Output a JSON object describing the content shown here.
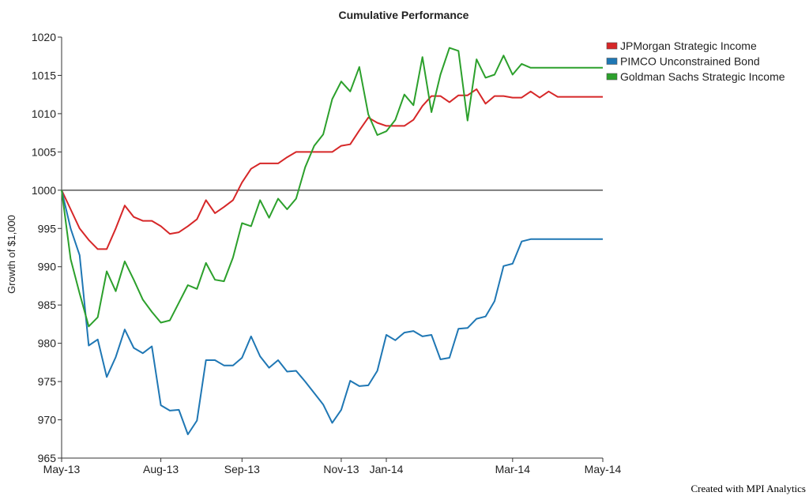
{
  "chart_data": {
    "type": "line",
    "title": "Cumulative Performance",
    "ylabel": "Growth of $1,000",
    "xlabel": "",
    "ylim": [
      965,
      1020
    ],
    "yticks": [
      965,
      970,
      975,
      980,
      985,
      990,
      995,
      1000,
      1005,
      1010,
      1015,
      1020
    ],
    "xlim": [
      0,
      60
    ],
    "xticks": [
      {
        "x": 0,
        "label": "May-13"
      },
      {
        "x": 11,
        "label": "Aug-13"
      },
      {
        "x": 20,
        "label": "Sep-13"
      },
      {
        "x": 31,
        "label": "Nov-13"
      },
      {
        "x": 36,
        "label": "Jan-14"
      },
      {
        "x": 50,
        "label": "Mar-14"
      },
      {
        "x": 60,
        "label": "May-14"
      }
    ],
    "reference_line": 1000,
    "legend_position": "top-right",
    "grid": false,
    "series": [
      {
        "name": "JPMorgan Strategic Income",
        "color": "#d62728",
        "x": [
          0,
          1,
          2,
          3,
          4,
          5,
          6,
          7,
          8,
          9,
          10,
          11,
          12,
          13,
          14,
          15,
          16,
          17,
          18,
          19,
          20,
          21,
          22,
          23,
          24,
          25,
          26,
          27,
          28,
          29,
          30,
          31,
          32,
          33,
          34,
          35,
          36,
          37,
          38,
          39,
          40,
          41,
          42,
          43,
          44,
          45,
          46,
          47,
          48,
          49,
          50,
          51,
          52,
          53,
          54,
          55,
          56,
          57,
          58,
          59,
          60
        ],
        "values": [
          1000,
          997.5,
          995,
          993.5,
          992.3,
          992.3,
          995,
          998,
          996.5,
          996,
          996,
          995.3,
          994.3,
          994.5,
          995.3,
          996.2,
          998.7,
          997,
          997.8,
          998.7,
          1001,
          1002.8,
          1003.5,
          1003.5,
          1003.5,
          1004.3,
          1005,
          1005,
          1005,
          1005,
          1005,
          1005.8,
          1006,
          1007.8,
          1009.5,
          1008.8,
          1008.4,
          1008.4,
          1008.4,
          1009.2,
          1011,
          1012.3,
          1012.3,
          1011.5,
          1012.4,
          1012.4,
          1013.2,
          1011.3,
          1012.3,
          1012.3,
          1012.1,
          1012.1,
          1012.9,
          1012.1,
          1012.9,
          1012.2,
          1012.2,
          1012.2,
          1012.2,
          1012.2,
          1012.2
        ]
      },
      {
        "name": "PIMCO Unconstrained Bond",
        "color": "#1f77b4",
        "x": [
          0,
          1,
          2,
          3,
          4,
          5,
          6,
          7,
          8,
          9,
          10,
          11,
          12,
          13,
          14,
          15,
          16,
          17,
          18,
          19,
          20,
          21,
          22,
          23,
          24,
          25,
          26,
          27,
          28,
          29,
          30,
          31,
          32,
          33,
          34,
          35,
          36,
          37,
          38,
          39,
          40,
          41,
          42,
          43,
          44,
          45,
          46,
          47,
          48,
          49,
          50,
          51,
          52,
          53,
          54,
          55,
          56,
          57,
          58,
          59,
          60
        ],
        "values": [
          1000,
          995,
          991.5,
          979.7,
          980.5,
          975.6,
          978.2,
          981.8,
          979.4,
          978.7,
          979.6,
          971.9,
          971.2,
          971.3,
          968.1,
          969.9,
          977.8,
          977.8,
          977.1,
          977.1,
          978.1,
          980.9,
          978.3,
          976.8,
          977.8,
          976.3,
          976.4,
          975,
          973.5,
          972,
          969.6,
          971.3,
          975.1,
          974.4,
          974.5,
          976.4,
          981.1,
          980.4,
          981.4,
          981.6,
          980.9,
          981.1,
          977.9,
          978.1,
          981.9,
          982,
          983.2,
          983.5,
          985.5,
          990.1,
          990.4,
          993.3,
          993.6,
          993.6,
          993.6,
          993.6,
          993.6,
          993.6,
          993.6,
          993.6,
          993.6
        ]
      },
      {
        "name": "Goldman Sachs Strategic Income",
        "color": "#2ca02c",
        "x": [
          0,
          1,
          2,
          3,
          4,
          5,
          6,
          7,
          8,
          9,
          10,
          11,
          12,
          13,
          14,
          15,
          16,
          17,
          18,
          19,
          20,
          21,
          22,
          23,
          24,
          25,
          26,
          27,
          28,
          29,
          30,
          31,
          32,
          33,
          34,
          35,
          36,
          37,
          38,
          39,
          40,
          41,
          42,
          43,
          44,
          45,
          46,
          47,
          48,
          49,
          50,
          51,
          52,
          53,
          54,
          55,
          56,
          57,
          58,
          59,
          60
        ],
        "values": [
          1000,
          991,
          986.5,
          982.2,
          983.4,
          989.4,
          986.8,
          990.7,
          988.3,
          985.7,
          984.1,
          982.7,
          983,
          985.3,
          987.6,
          987.1,
          990.5,
          988.3,
          988.1,
          991.2,
          995.7,
          995.3,
          998.7,
          996.4,
          998.9,
          997.5,
          998.9,
          1003,
          1005.8,
          1007.3,
          1011.9,
          1014.2,
          1012.9,
          1016.1,
          1009.9,
          1007.2,
          1007.7,
          1009.2,
          1012.5,
          1011.1,
          1017.4,
          1010.2,
          1015.1,
          1018.6,
          1018.2,
          1009.1,
          1017.1,
          1014.7,
          1015.1,
          1017.6,
          1015.1,
          1016.5,
          1016,
          1016,
          1016,
          1016,
          1016,
          1016,
          1016,
          1016,
          1016
        ]
      }
    ],
    "credit": "Created with MPI Analytics"
  }
}
